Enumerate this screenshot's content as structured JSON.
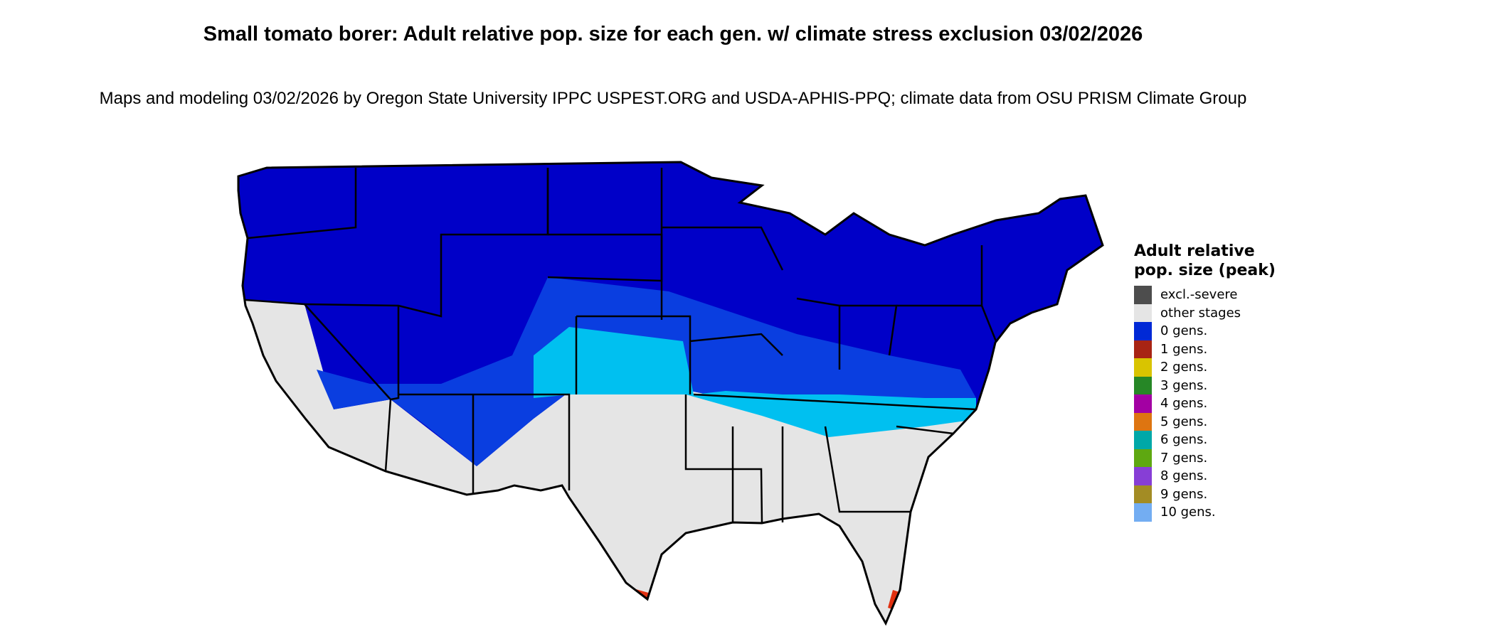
{
  "title": "Small tomato borer: Adult relative pop. size for each gen. w/ climate stress exclusion 03/02/2026",
  "subtitle": "Maps and modeling 03/02/2026 by Oregon State University IPPC USPEST.ORG and USDA-APHIS-PPQ; climate data from OSU PRISM Climate Group",
  "map": {
    "region": "contiguous United States",
    "colors": {
      "other_stages": "#e5e5e5",
      "zero_gens_dark": "#0000c8",
      "zero_gens_mid": "#0a3ee0",
      "zero_gens_light": "#00c0f0",
      "one_gen": "#e03010",
      "border": "#000000"
    }
  },
  "legend": {
    "title": "Adult relative pop. size (peak)",
    "items": [
      {
        "label": "excl.-severe",
        "color": "#4d4d4d"
      },
      {
        "label": "other stages",
        "color": "#e5e5e5"
      },
      {
        "label": "0 gens.",
        "color": "#0029d6"
      },
      {
        "label": "1 gens.",
        "color": "#a82414"
      },
      {
        "label": "2 gens.",
        "color": "#d9c400"
      },
      {
        "label": "3 gens.",
        "color": "#268726"
      },
      {
        "label": "4 gens.",
        "color": "#a300a3"
      },
      {
        "label": "5 gens.",
        "color": "#de7511"
      },
      {
        "label": "6 gens.",
        "color": "#00a8a8"
      },
      {
        "label": "7 gens.",
        "color": "#5ea811"
      },
      {
        "label": "8 gens.",
        "color": "#873ed6"
      },
      {
        "label": "9 gens.",
        "color": "#a38c24"
      },
      {
        "label": "10 gens.",
        "color": "#73adf2"
      }
    ]
  }
}
